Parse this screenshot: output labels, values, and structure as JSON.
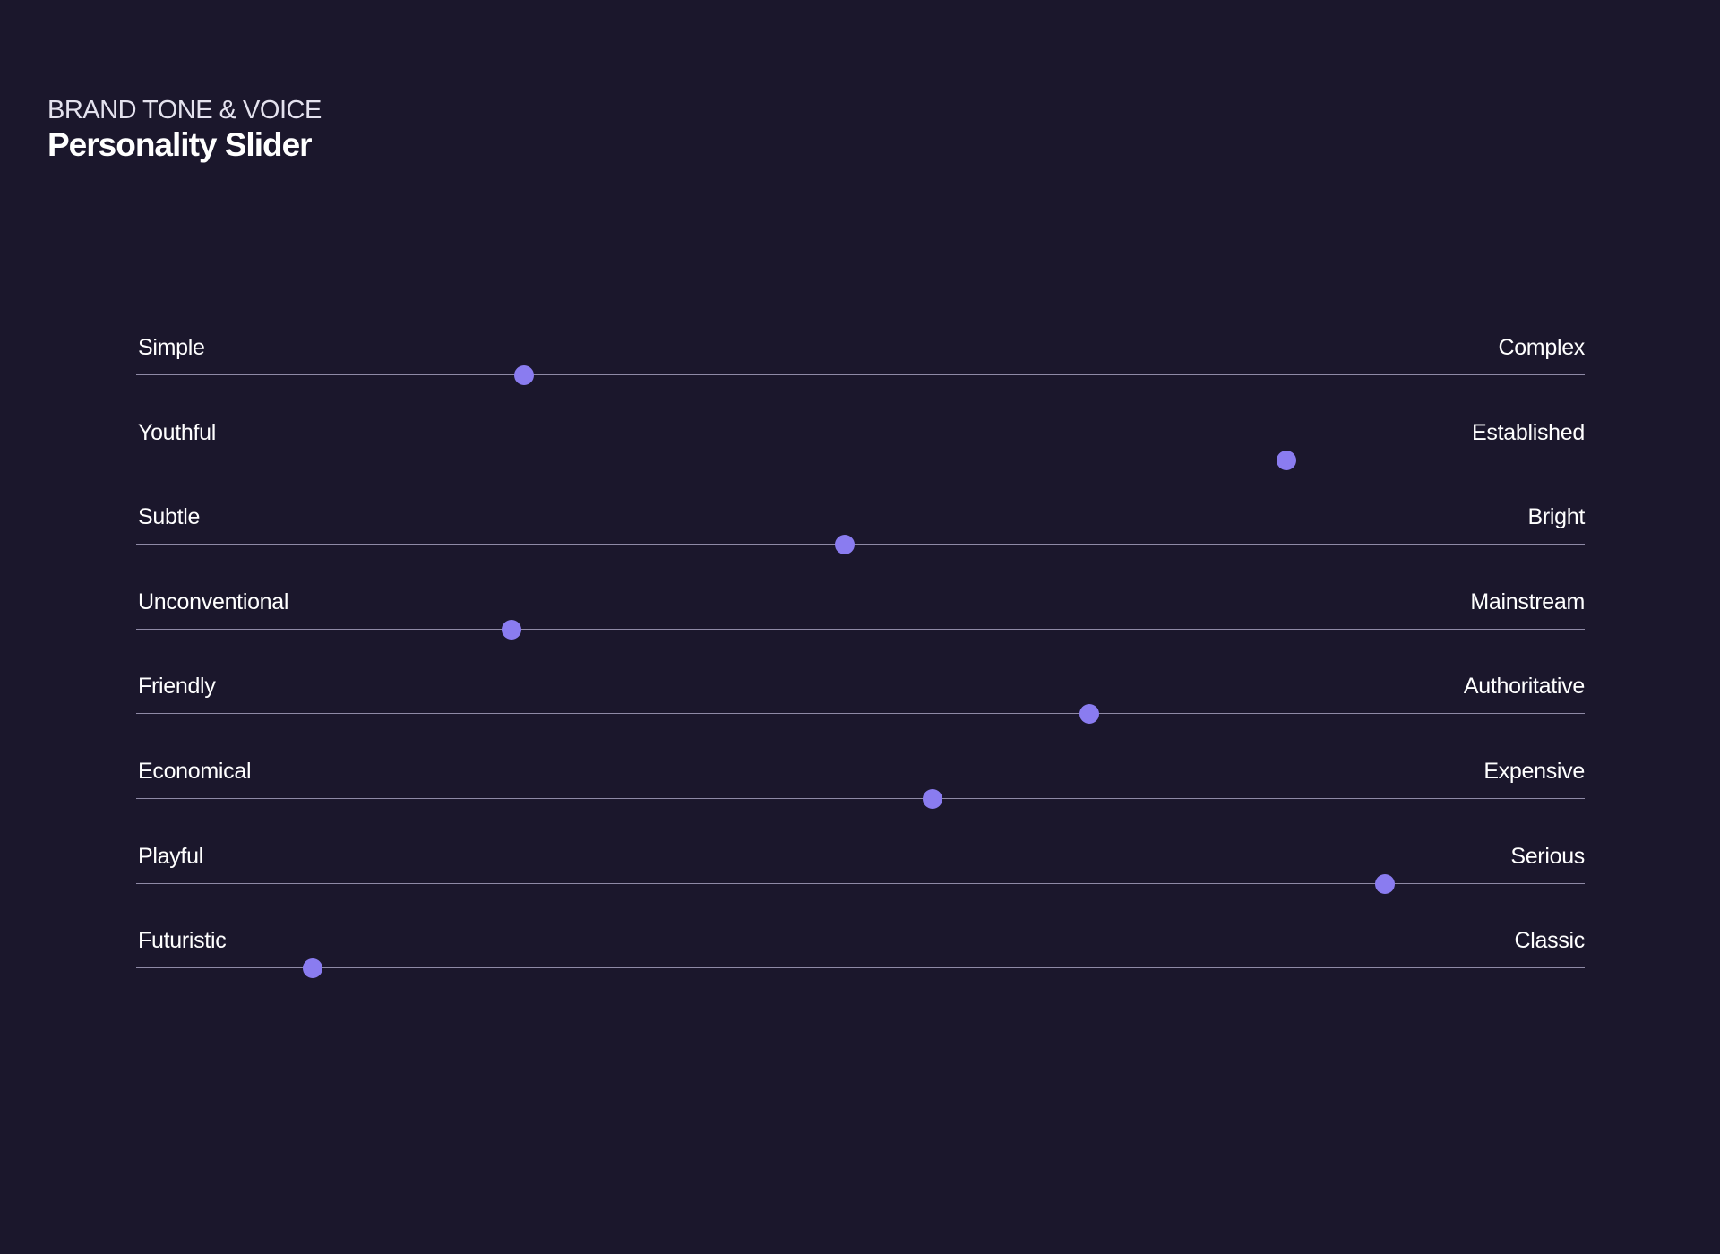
{
  "header": {
    "eyebrow": "BRAND TONE & VOICE",
    "title": "Personality Slider"
  },
  "colors": {
    "background": "#1b172c",
    "track": "#8f8aa6",
    "thumb": "#8a7cf0",
    "text": "#ffffff"
  },
  "sliders": [
    {
      "left": "Simple",
      "right": "Complex",
      "value": 0.268
    },
    {
      "left": "Youthful",
      "right": "Established",
      "value": 0.794
    },
    {
      "left": "Subtle",
      "right": "Bright",
      "value": 0.489
    },
    {
      "left": "Unconventional",
      "right": "Mainstream",
      "value": 0.259
    },
    {
      "left": "Friendly",
      "right": "Authoritative",
      "value": 0.658
    },
    {
      "left": "Economical",
      "right": "Expensive",
      "value": 0.55
    },
    {
      "left": "Playful",
      "right": "Serious",
      "value": 0.862
    },
    {
      "left": "Futuristic",
      "right": "Classic",
      "value": 0.122
    }
  ]
}
